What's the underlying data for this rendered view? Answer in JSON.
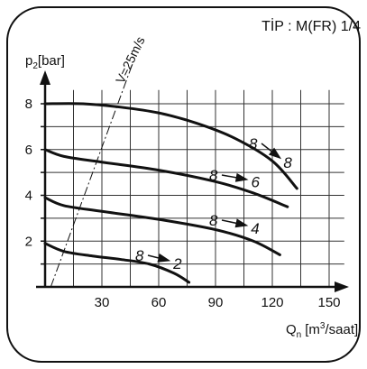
{
  "chart_data": {
    "type": "line",
    "title": "TİP : M(FR) 1/4",
    "ylabel": {
      "main": "p",
      "sub": "2",
      "unit": "[bar]"
    },
    "xlabel": {
      "main": "Q",
      "sub": "n",
      "unit_pre": "[m",
      "sup": "3",
      "unit_post": "/saat]"
    },
    "xlim": [
      0,
      165
    ],
    "ylim": [
      0,
      9
    ],
    "x_ticks": [
      30,
      60,
      90,
      120,
      150
    ],
    "y_ticks": [
      2,
      4,
      6,
      8
    ],
    "grid": true,
    "series": [
      {
        "name": "8 ▶ 8",
        "label_left": "8",
        "label_right": "8",
        "x": [
          0,
          20,
          40,
          60,
          80,
          100,
          120,
          133
        ],
        "y": [
          8.0,
          8.0,
          7.85,
          7.6,
          7.15,
          6.5,
          5.5,
          4.3
        ]
      },
      {
        "name": "8 ▶ 6",
        "label_left": "8",
        "label_right": "6",
        "x": [
          0,
          10,
          30,
          60,
          90,
          110,
          128
        ],
        "y": [
          6.0,
          5.7,
          5.45,
          5.1,
          4.6,
          4.1,
          3.5
        ]
      },
      {
        "name": "8 ▶ 4",
        "label_left": "8",
        "label_right": "4",
        "x": [
          0,
          10,
          30,
          60,
          90,
          110,
          124
        ],
        "y": [
          3.9,
          3.55,
          3.3,
          2.95,
          2.5,
          2.0,
          1.4
        ]
      },
      {
        "name": "8 ▶ 2",
        "label_left": "8",
        "label_right": "2",
        "x": [
          0,
          10,
          25,
          40,
          55,
          68,
          76
        ],
        "y": [
          1.9,
          1.55,
          1.35,
          1.2,
          1.0,
          0.6,
          0.2
        ]
      }
    ],
    "annotation": {
      "text": "V=25m/s",
      "x": [
        3,
        46
      ],
      "y": [
        0,
        9
      ]
    }
  }
}
